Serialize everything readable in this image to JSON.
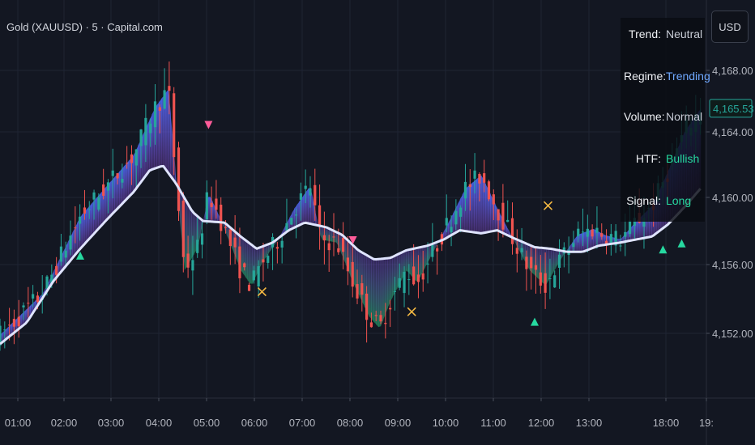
{
  "header": {
    "title": "Gold (XAUUSD) · 5 · Capital.com"
  },
  "currency_button": {
    "label": "USD"
  },
  "info_panel": {
    "rows": [
      {
        "key": "Trend:",
        "value": "Neutral",
        "color": "#c8ccd6"
      },
      {
        "key": "Regime:",
        "value": "Trending",
        "color": "#6fa8ff"
      },
      {
        "key": "Volume:",
        "value": "Normal",
        "color": "#c8ccd6"
      },
      {
        "key": "HTF:",
        "value": "Bullish",
        "color": "#26d9a0"
      },
      {
        "key": "Signal:",
        "value": "Long",
        "color": "#26d9a0"
      }
    ]
  },
  "colors": {
    "background": "#131722",
    "grid": "#1f2433",
    "up_candle": "#26a69a",
    "down_candle": "#ef5350",
    "ma_line": "#dfe4ff",
    "bull_fill": "#4a6dff",
    "bear_fill": "#9b5de5",
    "long_marker": "#26d9a0",
    "short_marker": "#ff5c9a",
    "exit_marker": "#f5b942",
    "axis_text": "#b2b5be",
    "price_label": "#26a69a"
  },
  "chart_data": {
    "type": "candlestick",
    "title": "Gold (XAUUSD) · 5 · Capital.com",
    "x_tick_labels": [
      "01:00",
      "02:00",
      "03:00",
      "04:00",
      "05:00",
      "06:00",
      "07:00",
      "08:00",
      "09:00",
      "10:00",
      "11:00",
      "12:00",
      "13:00",
      "18:00",
      "19:"
    ],
    "y_tick_labels": [
      "4,168.00",
      "4,164.00",
      "4,160.00",
      "4,156.00",
      "4,152.00"
    ],
    "y_ticks": [
      4168,
      4164,
      4160,
      4156,
      4152
    ],
    "ylim": [
      4148.5,
      4169.8
    ],
    "last_price": 4165.53,
    "last_price_label": "4,165.53",
    "price_path": [
      [
        0.0,
        4150.8
      ],
      [
        0.08,
        4153.5
      ],
      [
        0.15,
        4158.5
      ],
      [
        0.25,
        4162.5
      ],
      [
        0.29,
        4165.6
      ],
      [
        0.315,
        4166.8
      ],
      [
        0.33,
        4160.5
      ],
      [
        0.345,
        4155.0
      ],
      [
        0.37,
        4156.5
      ],
      [
        0.39,
        4160.0
      ],
      [
        0.41,
        4158.5
      ],
      [
        0.45,
        4155.0
      ],
      [
        0.47,
        4154.0
      ],
      [
        0.49,
        4155.5
      ],
      [
        0.52,
        4157.0
      ],
      [
        0.55,
        4159.0
      ],
      [
        0.58,
        4160.5
      ],
      [
        0.6,
        4157.0
      ],
      [
        0.63,
        4156.8
      ],
      [
        0.66,
        4154.2
      ],
      [
        0.69,
        4152.0
      ],
      [
        0.71,
        4151.2
      ],
      [
        0.73,
        4153.0
      ],
      [
        0.76,
        4155.0
      ],
      [
        0.78,
        4154.2
      ],
      [
        0.81,
        4156.2
      ],
      [
        0.84,
        4158.2
      ],
      [
        0.87,
        4160.3
      ],
      [
        0.9,
        4161.2
      ],
      [
        0.93,
        4159.0
      ],
      [
        0.96,
        4157.0
      ],
      [
        0.99,
        4155.0
      ],
      [
        1.02,
        4154.0
      ],
      [
        1.05,
        4155.8
      ],
      [
        1.08,
        4157.3
      ],
      [
        1.11,
        4157.7
      ],
      [
        1.13,
        4157.3
      ],
      [
        1.16,
        4157.0
      ],
      [
        1.19,
        4158.2
      ],
      [
        1.22,
        4159.2
      ],
      [
        1.25,
        4161.5
      ],
      [
        1.28,
        4164.0
      ],
      [
        1.31,
        4165.5
      ]
    ],
    "ma_path": [
      [
        0.0,
        4150.2
      ],
      [
        0.05,
        4151.6
      ],
      [
        0.1,
        4154.3
      ],
      [
        0.15,
        4156.4
      ],
      [
        0.2,
        4158.3
      ],
      [
        0.25,
        4160.1
      ],
      [
        0.28,
        4161.5
      ],
      [
        0.305,
        4161.8
      ],
      [
        0.33,
        4160.6
      ],
      [
        0.36,
        4158.8
      ],
      [
        0.38,
        4158.2
      ],
      [
        0.42,
        4158.1
      ],
      [
        0.45,
        4157.2
      ],
      [
        0.48,
        4156.4
      ],
      [
        0.51,
        4156.8
      ],
      [
        0.54,
        4157.6
      ],
      [
        0.57,
        4158.1
      ],
      [
        0.61,
        4157.8
      ],
      [
        0.64,
        4157.3
      ],
      [
        0.67,
        4156.3
      ],
      [
        0.7,
        4155.7
      ],
      [
        0.73,
        4155.8
      ],
      [
        0.76,
        4156.3
      ],
      [
        0.8,
        4156.6
      ],
      [
        0.83,
        4157.0
      ],
      [
        0.86,
        4157.6
      ],
      [
        0.9,
        4157.4
      ],
      [
        0.93,
        4157.6
      ],
      [
        0.96,
        4157.1
      ],
      [
        1.0,
        4156.5
      ],
      [
        1.03,
        4156.4
      ],
      [
        1.06,
        4156.2
      ],
      [
        1.09,
        4156.2
      ],
      [
        1.12,
        4156.6
      ],
      [
        1.16,
        4156.8
      ],
      [
        1.19,
        4157.0
      ],
      [
        1.22,
        4157.2
      ],
      [
        1.25,
        4158.0
      ],
      [
        1.28,
        4159.1
      ],
      [
        1.31,
        4160.3
      ]
    ],
    "signals": [
      {
        "type": "long",
        "x": 0.15,
        "y": 4155.9
      },
      {
        "type": "short",
        "x": 0.39,
        "y": 4164.5
      },
      {
        "type": "exit",
        "x": 0.49,
        "y": 4153.6
      },
      {
        "type": "short",
        "x": 0.66,
        "y": 4157.0
      },
      {
        "type": "exit",
        "x": 0.77,
        "y": 4152.3
      },
      {
        "type": "long",
        "x": 1.0,
        "y": 4151.6
      },
      {
        "type": "exit",
        "x": 1.025,
        "y": 4159.2
      },
      {
        "type": "long",
        "x": 1.24,
        "y": 4156.3
      },
      {
        "type": "long",
        "x": 1.275,
        "y": 4156.7
      }
    ]
  }
}
